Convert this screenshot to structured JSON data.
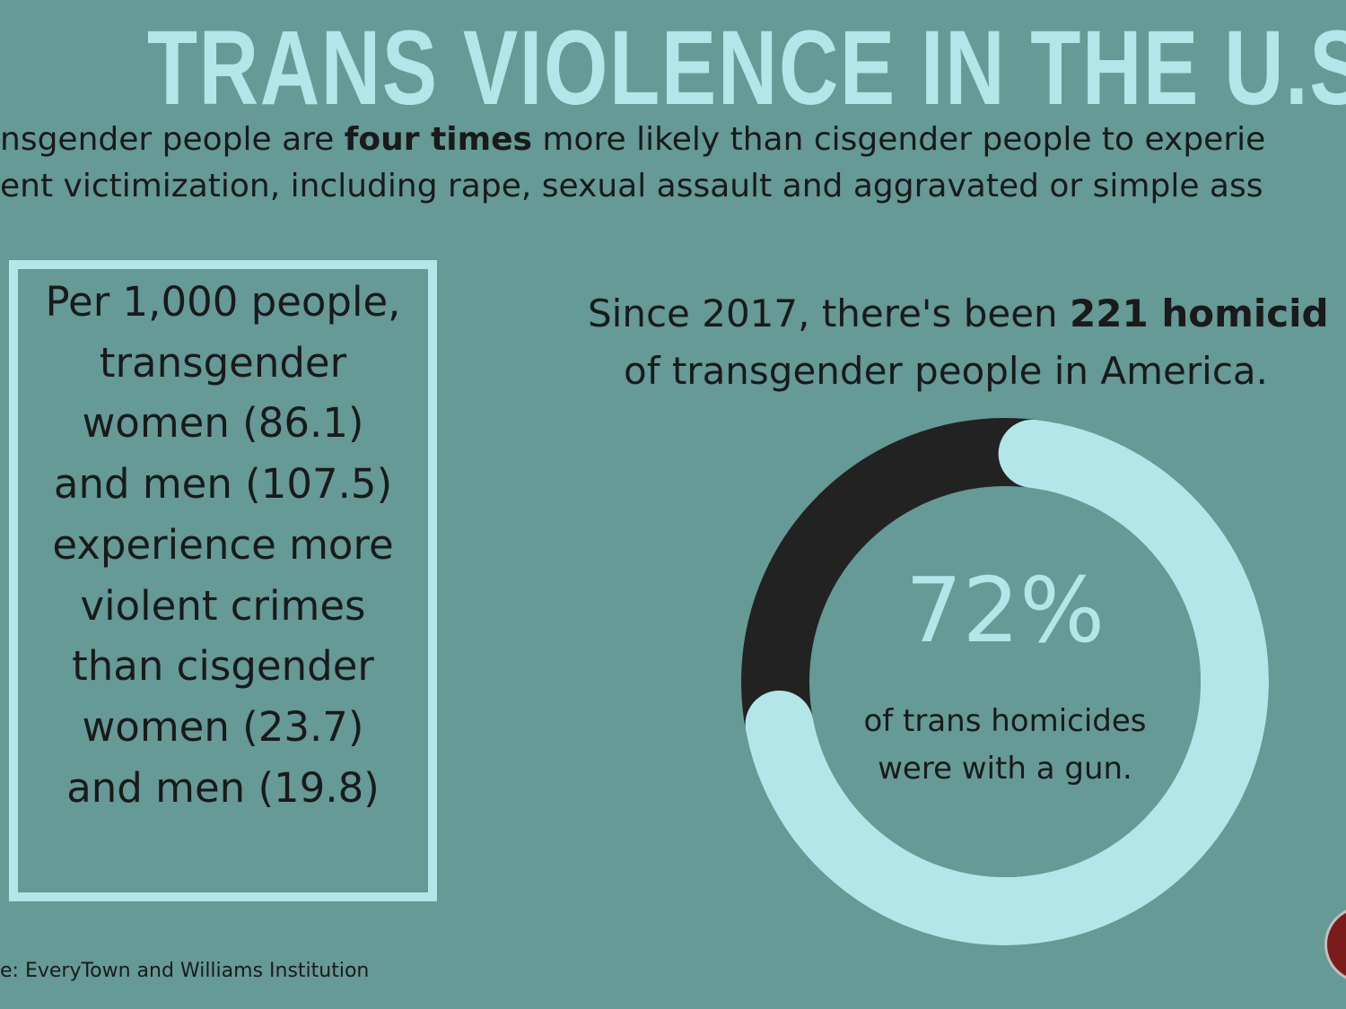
{
  "title": "TRANS VIOLENCE IN THE U.S.",
  "intro": {
    "lines": [
      [
        "nsgender people are ",
        "four times",
        " more likely than cisgender people to experie"
      ],
      [
        "ent victimization, including rape, sexual assault and aggravated or simple ass"
      ]
    ]
  },
  "box": {
    "lines": [
      "Per 1,000 people,",
      "transgender",
      "women (86.1)",
      "and men (107.5)",
      "experience more",
      "violent crimes",
      "than cisgender",
      "women (23.7)",
      "and men (19.8)"
    ]
  },
  "homicides": {
    "lines": [
      [
        "Since 2017, there's been ",
        "221 homicid"
      ],
      [
        "of transgender people in America."
      ]
    ]
  },
  "donut": {
    "values": [
      72
    ],
    "value_labels": [
      "72%"
    ],
    "color": "#b3e6e8",
    "track_color": "#222222",
    "caption_lines": [
      "of trans homicides",
      "were with a gun."
    ]
  },
  "source": "e: EveryTown and Williams Institution"
}
